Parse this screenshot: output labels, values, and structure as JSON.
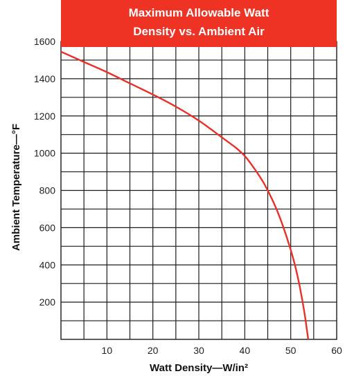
{
  "chart_data": {
    "type": "line",
    "title_lines": [
      "Maximum Allowable Watt",
      "Density vs. Ambient Air"
    ],
    "xlabel": "Watt Density—W/in²",
    "ylabel": "Ambient Temperature—°F",
    "xlim": [
      0,
      60
    ],
    "ylim": [
      0,
      1600
    ],
    "x_ticks": [
      10,
      20,
      30,
      40,
      50,
      60
    ],
    "y_ticks": [
      200,
      400,
      600,
      800,
      1000,
      1200,
      1400,
      1600
    ],
    "grid": true,
    "x_grid_step": 5,
    "y_grid_step": 100,
    "series": [
      {
        "color": "#e8302b",
        "x": [
          0,
          5,
          10,
          15,
          20,
          25,
          30,
          35,
          38,
          40,
          42,
          44,
          46,
          48,
          50,
          51,
          52,
          53,
          53.8
        ],
        "y": [
          1545,
          1490,
          1435,
          1375,
          1315,
          1250,
          1175,
          1085,
          1030,
          985,
          920,
          845,
          750,
          630,
          480,
          390,
          280,
          140,
          0
        ]
      }
    ],
    "colors": {
      "title_background": "#ee3224",
      "title_text": "#ffffff",
      "grid": "#1a1a1a"
    }
  }
}
